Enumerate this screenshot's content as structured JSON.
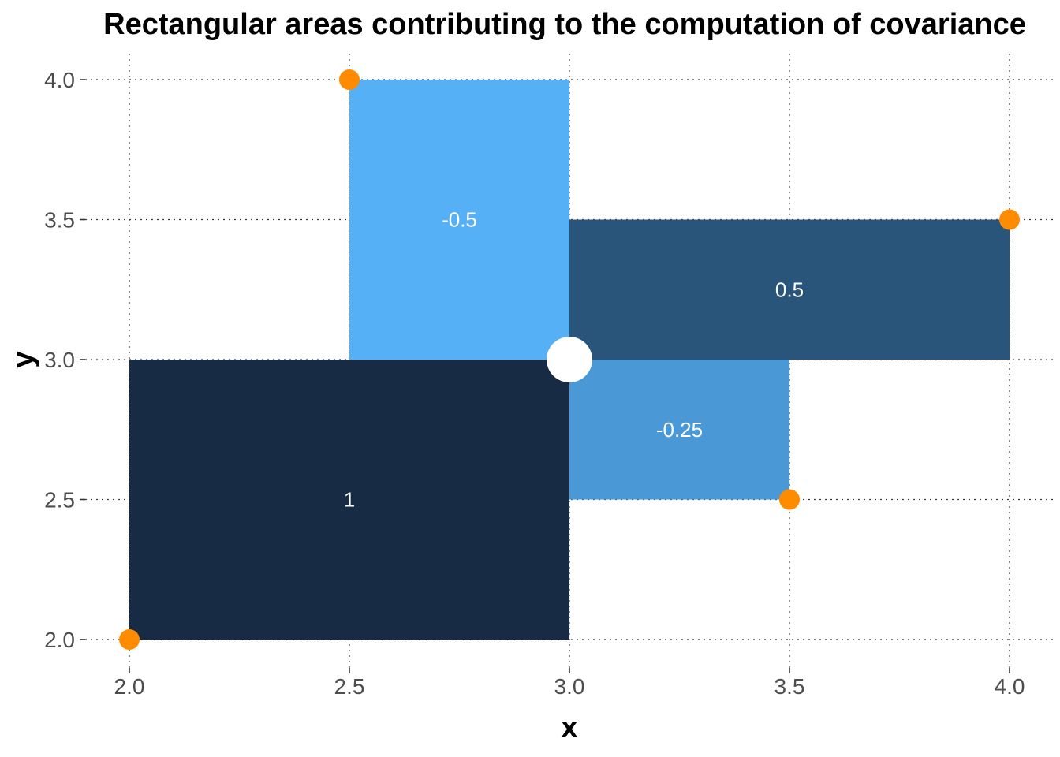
{
  "chart_data": {
    "type": "scatter",
    "title": "Rectangular areas contributing to the computation of covariance",
    "xlabel": "x",
    "ylabel": "y",
    "xlim": [
      2.0,
      4.0
    ],
    "ylim": [
      2.0,
      4.0
    ],
    "x_ticks": [
      "2.0",
      "2.5",
      "3.0",
      "3.5",
      "4.0"
    ],
    "y_ticks": [
      "2.0",
      "2.5",
      "3.0",
      "3.5",
      "4.0"
    ],
    "grid": true,
    "legend": "none",
    "mean_point": {
      "x": 3.0,
      "y": 3.0,
      "color": "#ffffff"
    },
    "points": [
      {
        "x": 2.0,
        "y": 2.0
      },
      {
        "x": 2.5,
        "y": 4.0
      },
      {
        "x": 3.5,
        "y": 2.5
      },
      {
        "x": 4.0,
        "y": 3.5
      }
    ],
    "point_color": "#ff8c00",
    "rectangles": [
      {
        "x0": 2.0,
        "x1": 3.0,
        "y0": 2.0,
        "y1": 3.0,
        "value": 1,
        "label": "1",
        "color": "#172c44"
      },
      {
        "x0": 2.5,
        "x1": 3.0,
        "y0": 3.0,
        "y1": 4.0,
        "value": -0.5,
        "label": "-0.5",
        "color": "#56b0f6"
      },
      {
        "x0": 3.0,
        "x1": 4.0,
        "y0": 3.0,
        "y1": 3.5,
        "value": 0.5,
        "label": "0.5",
        "color": "#285579"
      },
      {
        "x0": 3.0,
        "x1": 3.5,
        "y0": 2.5,
        "y1": 3.0,
        "value": -0.25,
        "label": "-0.25",
        "color": "#4a98d6"
      }
    ]
  }
}
